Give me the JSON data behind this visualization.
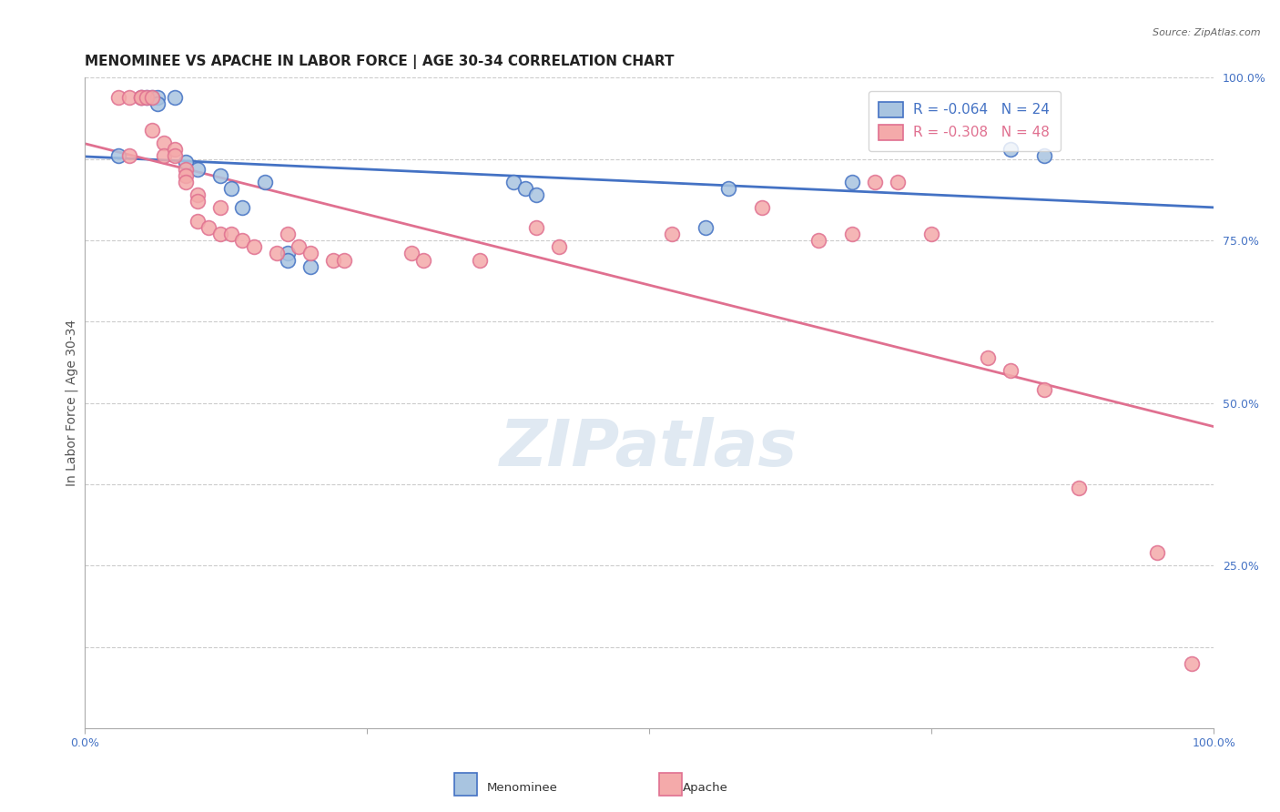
{
  "title": "MENOMINEE VS APACHE IN LABOR FORCE | AGE 30-34 CORRELATION CHART",
  "source_text": "Source: ZipAtlas.com",
  "ylabel": "In Labor Force | Age 30-34",
  "xlim": [
    0.0,
    1.0
  ],
  "ylim": [
    0.0,
    1.0
  ],
  "ytick_labels_right": [
    "100.0%",
    "75.0%",
    "50.0%",
    "25.0%"
  ],
  "ytick_positions_right": [
    1.0,
    0.75,
    0.5,
    0.25
  ],
  "grid_y_positions": [
    1.0,
    0.875,
    0.75,
    0.625,
    0.5,
    0.375,
    0.25,
    0.125
  ],
  "legend_r_blue": "R = -0.064",
  "legend_n_blue": "N = 24",
  "legend_r_pink": "R = -0.308",
  "legend_n_pink": "N = 48",
  "watermark_text": "ZIPatlas",
  "blue_fill": "#A8C4E0",
  "blue_edge": "#4472C4",
  "pink_fill": "#F4AAAA",
  "pink_edge": "#E07090",
  "blue_line_color": "#4472C4",
  "pink_line_color": "#E07090",
  "menominee_x": [
    0.03,
    0.05,
    0.055,
    0.06,
    0.065,
    0.065,
    0.08,
    0.09,
    0.1,
    0.12,
    0.13,
    0.14,
    0.16,
    0.18,
    0.18,
    0.2,
    0.55,
    0.57,
    0.68,
    0.82,
    0.85,
    0.38,
    0.39,
    0.4
  ],
  "menominee_y": [
    0.88,
    0.97,
    0.97,
    0.97,
    0.97,
    0.96,
    0.97,
    0.87,
    0.86,
    0.85,
    0.83,
    0.8,
    0.84,
    0.73,
    0.72,
    0.71,
    0.77,
    0.83,
    0.84,
    0.89,
    0.88,
    0.84,
    0.83,
    0.82
  ],
  "apache_x": [
    0.03,
    0.04,
    0.04,
    0.05,
    0.05,
    0.055,
    0.06,
    0.06,
    0.07,
    0.07,
    0.08,
    0.08,
    0.09,
    0.09,
    0.09,
    0.1,
    0.1,
    0.1,
    0.11,
    0.12,
    0.12,
    0.13,
    0.14,
    0.15,
    0.17,
    0.18,
    0.19,
    0.2,
    0.22,
    0.23,
    0.29,
    0.3,
    0.35,
    0.4,
    0.42,
    0.52,
    0.6,
    0.65,
    0.68,
    0.7,
    0.72,
    0.75,
    0.8,
    0.82,
    0.85,
    0.88,
    0.95,
    0.98
  ],
  "apache_y": [
    0.97,
    0.97,
    0.88,
    0.97,
    0.97,
    0.97,
    0.97,
    0.92,
    0.9,
    0.88,
    0.89,
    0.88,
    0.86,
    0.85,
    0.84,
    0.82,
    0.81,
    0.78,
    0.77,
    0.8,
    0.76,
    0.76,
    0.75,
    0.74,
    0.73,
    0.76,
    0.74,
    0.73,
    0.72,
    0.72,
    0.73,
    0.72,
    0.72,
    0.77,
    0.74,
    0.76,
    0.8,
    0.75,
    0.76,
    0.84,
    0.84,
    0.76,
    0.57,
    0.55,
    0.52,
    0.37,
    0.27,
    0.1
  ],
  "background_color": "#FFFFFF",
  "title_fontsize": 11,
  "axis_label_fontsize": 10,
  "tick_fontsize": 9
}
